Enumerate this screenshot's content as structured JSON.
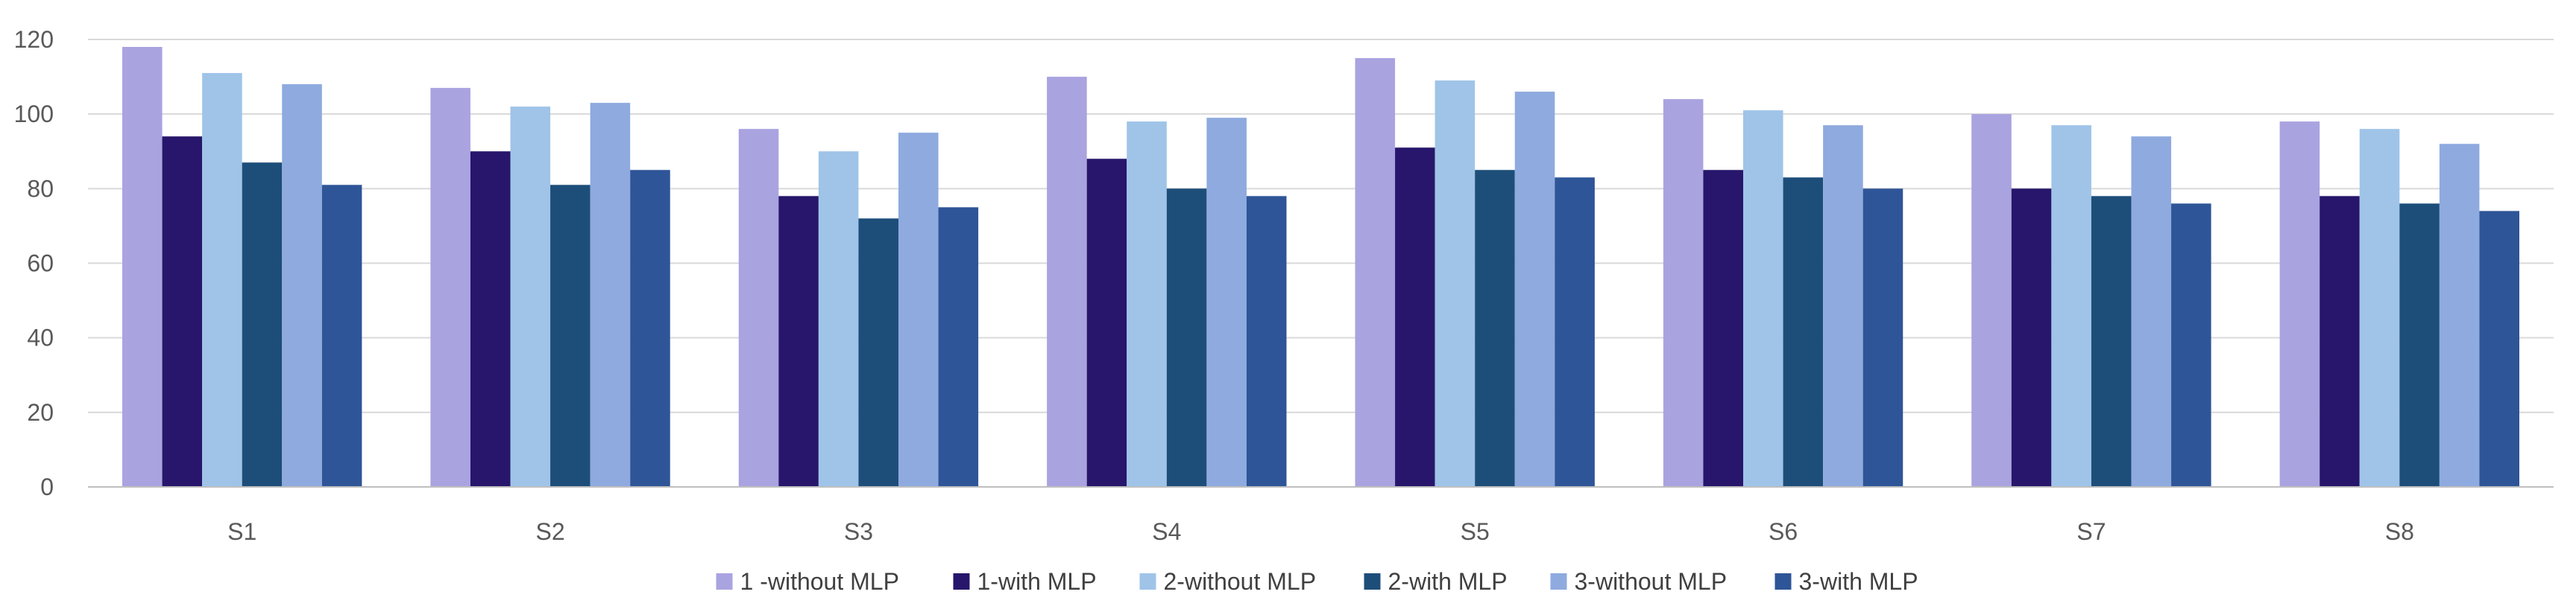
{
  "chart_data": {
    "type": "bar",
    "title": "",
    "xlabel": "",
    "ylabel": "",
    "ylim": [
      0,
      120
    ],
    "yticks": [
      0,
      20,
      40,
      60,
      80,
      100,
      120
    ],
    "grid": true,
    "legend_position": "bottom",
    "categories": [
      "S1",
      "S2",
      "S3",
      "S4",
      "S5",
      "S6",
      "S7",
      "S8"
    ],
    "series": [
      {
        "name": "1 -without MLP",
        "color": "#A9A3E0",
        "values": [
          118,
          107,
          96,
          110,
          115,
          104,
          100,
          98
        ]
      },
      {
        "name": "1-with MLP",
        "color": "#27166B",
        "values": [
          94,
          90,
          78,
          88,
          91,
          85,
          80,
          78
        ]
      },
      {
        "name": "2-without MLP",
        "color": "#9FC4E8",
        "values": [
          111,
          102,
          90,
          98,
          109,
          101,
          97,
          96
        ]
      },
      {
        "name": "2-with MLP",
        "color": "#1D4E79",
        "values": [
          87,
          81,
          72,
          80,
          85,
          83,
          78,
          76
        ]
      },
      {
        "name": "3-without MLP",
        "color": "#8EAADF",
        "values": [
          108,
          103,
          95,
          99,
          106,
          97,
          94,
          92
        ]
      },
      {
        "name": "3-with MLP",
        "color": "#2E5597",
        "values": [
          81,
          85,
          75,
          78,
          83,
          80,
          76,
          74
        ]
      }
    ]
  }
}
